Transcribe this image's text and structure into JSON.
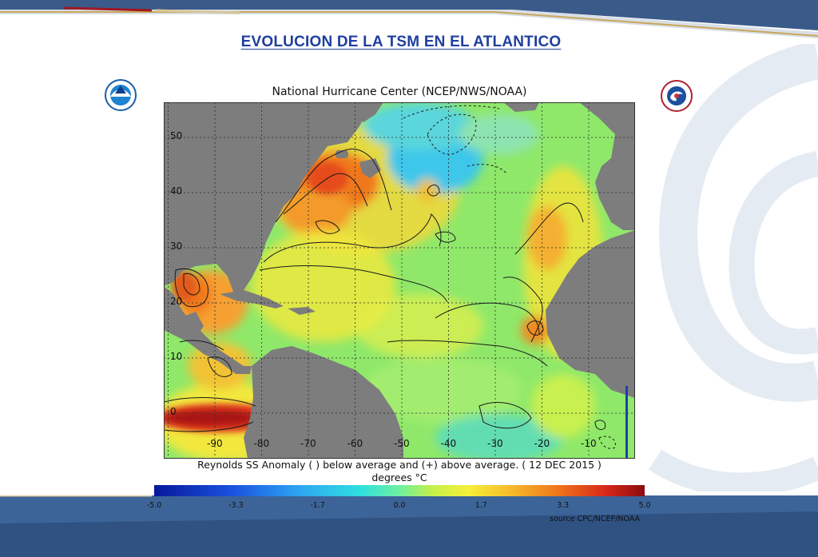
{
  "slide": {
    "title": "EVOLUCION DE LA TSM EN EL ATLANTICO"
  },
  "map": {
    "header": "National Hurricane Center (NCEP/NWS/NOAA)",
    "caption": "Reynolds SS  Anomaly (  ) below average and (+) above average. ( 12 DEC 2015 )",
    "units": "degrees °C",
    "lat_labels": [
      "50",
      "40",
      "30",
      "20",
      "10",
      "0"
    ],
    "lon_labels": [
      "-90",
      "-80",
      "-70",
      "-60",
      "-50",
      "-40",
      "-30",
      "-20",
      "-10"
    ],
    "colors": {
      "land": "#7d7d7d",
      "ocean_base": "#8fe86a",
      "warm": "#f0781c",
      "cool": "#3ec7ea"
    }
  },
  "colorbar": {
    "ticks": [
      "-5.0",
      "-3.3",
      "-1.7",
      "0.0",
      "1.7",
      "3.3",
      "5.0"
    ],
    "source": "source   CPC/NCEP/NOAA"
  },
  "logos": {
    "left_icon": "noaa-logo-icon",
    "right_icon": "nws-logo-icon"
  }
}
